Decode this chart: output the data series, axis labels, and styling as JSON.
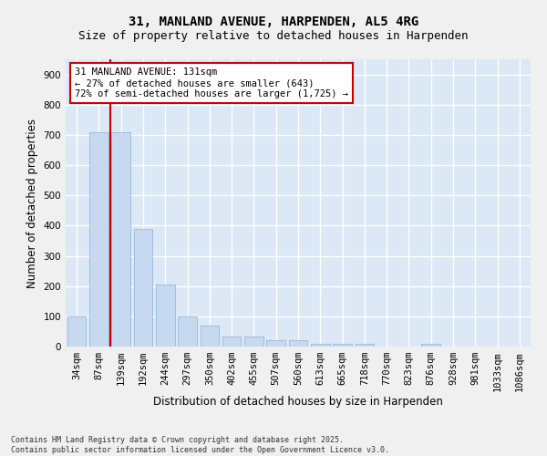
{
  "title_line1": "31, MANLAND AVENUE, HARPENDEN, AL5 4RG",
  "title_line2": "Size of property relative to detached houses in Harpenden",
  "xlabel": "Distribution of detached houses by size in Harpenden",
  "ylabel": "Number of detached properties",
  "categories": [
    "34sqm",
    "87sqm",
    "139sqm",
    "192sqm",
    "244sqm",
    "297sqm",
    "350sqm",
    "402sqm",
    "455sqm",
    "507sqm",
    "560sqm",
    "613sqm",
    "665sqm",
    "718sqm",
    "770sqm",
    "823sqm",
    "876sqm",
    "928sqm",
    "981sqm",
    "1033sqm",
    "1086sqm"
  ],
  "bar_heights": [
    100,
    710,
    710,
    390,
    205,
    100,
    70,
    33,
    33,
    20,
    20,
    10,
    10,
    10,
    0,
    0,
    10,
    0,
    0,
    0,
    0
  ],
  "bar_color": "#c6d9f1",
  "bar_edge_color": "#8ab0d4",
  "vline_color": "#cc0000",
  "annotation_text": "31 MANLAND AVENUE: 131sqm\n← 27% of detached houses are smaller (643)\n72% of semi-detached houses are larger (1,725) →",
  "annotation_box_color": "white",
  "annotation_box_edge_color": "#cc0000",
  "ylim": [
    0,
    950
  ],
  "yticks": [
    0,
    100,
    200,
    300,
    400,
    500,
    600,
    700,
    800,
    900
  ],
  "background_color": "#dce8f5",
  "plot_bg_color": "#dce8f5",
  "grid_color": "#ffffff",
  "footnote": "Contains HM Land Registry data © Crown copyright and database right 2025.\nContains public sector information licensed under the Open Government Licence v3.0.",
  "title_fontsize": 10,
  "subtitle_fontsize": 9,
  "xlabel_fontsize": 8.5,
  "ylabel_fontsize": 8.5,
  "tick_fontsize": 7.5,
  "annot_fontsize": 7.5,
  "footnote_fontsize": 6
}
